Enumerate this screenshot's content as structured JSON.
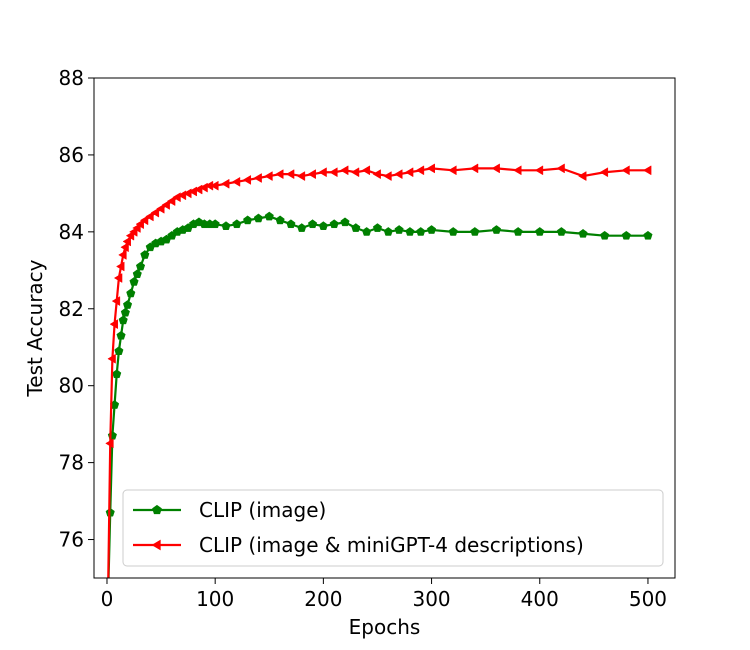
{
  "chart_data": {
    "type": "line",
    "title": "",
    "xlabel": "Epochs",
    "ylabel": "Test Accuracy",
    "xlim": [
      -12,
      525
    ],
    "ylim": [
      75,
      88
    ],
    "xticks": [
      0,
      100,
      200,
      300,
      400,
      500
    ],
    "yticks": [
      76,
      78,
      80,
      82,
      84,
      86,
      88
    ],
    "grid": false,
    "legend_position": "lower-right",
    "series": [
      {
        "name": "CLIP (image)",
        "color": "#008000",
        "marker": "pentagon",
        "x": [
          1,
          3,
          5,
          7,
          9,
          11,
          13,
          15,
          17,
          19,
          22,
          25,
          28,
          31,
          35,
          40,
          45,
          50,
          55,
          60,
          65,
          70,
          75,
          80,
          85,
          90,
          95,
          100,
          110,
          120,
          130,
          140,
          150,
          160,
          170,
          180,
          190,
          200,
          210,
          220,
          230,
          240,
          250,
          260,
          270,
          280,
          290,
          300,
          320,
          340,
          360,
          380,
          400,
          420,
          440,
          460,
          480,
          500
        ],
        "y": [
          74.5,
          76.7,
          78.7,
          79.5,
          80.3,
          80.9,
          81.3,
          81.7,
          81.9,
          82.1,
          82.4,
          82.7,
          82.9,
          83.1,
          83.4,
          83.6,
          83.7,
          83.75,
          83.8,
          83.9,
          84.0,
          84.05,
          84.1,
          84.2,
          84.25,
          84.2,
          84.2,
          84.2,
          84.15,
          84.2,
          84.3,
          84.35,
          84.4,
          84.3,
          84.2,
          84.1,
          84.2,
          84.15,
          84.2,
          84.25,
          84.1,
          84.0,
          84.1,
          84.0,
          84.05,
          84.0,
          84.0,
          84.05,
          84.0,
          84.0,
          84.05,
          84.0,
          84.0,
          84.0,
          83.95,
          83.9,
          83.9,
          83.9
        ]
      },
      {
        "name": "CLIP (image & miniGPT-4 descriptions)",
        "color": "#ff0000",
        "marker": "triangle-left",
        "x": [
          1,
          3,
          5,
          7,
          9,
          11,
          13,
          15,
          17,
          19,
          22,
          25,
          28,
          31,
          35,
          40,
          45,
          50,
          55,
          60,
          65,
          70,
          75,
          80,
          85,
          90,
          95,
          100,
          110,
          120,
          130,
          140,
          150,
          160,
          170,
          180,
          190,
          200,
          210,
          220,
          230,
          240,
          250,
          260,
          270,
          280,
          290,
          300,
          320,
          340,
          360,
          380,
          400,
          420,
          440,
          460,
          480,
          500
        ],
        "y": [
          74.6,
          78.5,
          80.7,
          81.6,
          82.2,
          82.8,
          83.1,
          83.4,
          83.6,
          83.75,
          83.9,
          84.0,
          84.1,
          84.2,
          84.3,
          84.4,
          84.5,
          84.6,
          84.7,
          84.8,
          84.9,
          84.95,
          85.0,
          85.05,
          85.1,
          85.15,
          85.2,
          85.2,
          85.25,
          85.3,
          85.35,
          85.4,
          85.45,
          85.5,
          85.5,
          85.45,
          85.5,
          85.55,
          85.55,
          85.6,
          85.55,
          85.6,
          85.5,
          85.45,
          85.5,
          85.55,
          85.6,
          85.65,
          85.6,
          85.65,
          85.65,
          85.6,
          85.6,
          85.65,
          85.45,
          85.55,
          85.6,
          85.6
        ]
      }
    ]
  }
}
